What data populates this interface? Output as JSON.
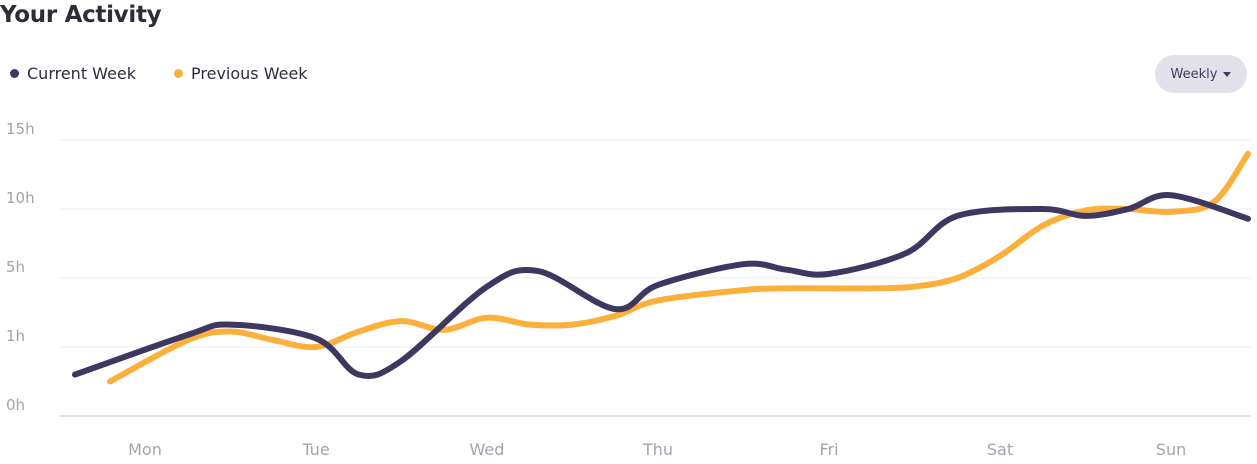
{
  "header": {
    "title": "Your Activity"
  },
  "dropdown": {
    "label": "Weekly",
    "icon": "caret-down-icon"
  },
  "colors": {
    "current": "#3e3760",
    "previous": "#fbb03b",
    "grid": "#eeeef1",
    "axis": "#d5d4db"
  },
  "chart_data": {
    "type": "line",
    "title": "Your Activity",
    "xlabel": "",
    "ylabel": "",
    "y_ticks": [
      "0h",
      "1h",
      "5h",
      "10h",
      "15h"
    ],
    "categories": [
      "Mon",
      "Tue",
      "Wed",
      "Thu",
      "Fri",
      "Sat",
      "Sun"
    ],
    "legend_position": "top-left",
    "grid": true,
    "series": [
      {
        "name": "Current Week",
        "x": [
          0,
          0.25,
          0.5,
          1.0,
          1.25,
          1.5,
          2.0,
          2.3,
          2.75,
          3.0,
          3.5,
          3.75,
          4.0,
          4.45,
          4.75,
          5.25,
          5.5,
          5.75,
          6.0,
          6.45
        ],
        "y": [
          0.6,
          1.7,
          2.3,
          1.5,
          0.6,
          0.8,
          4.5,
          5.5,
          3.2,
          4.6,
          6.0,
          5.6,
          5.3,
          6.8,
          9.5,
          10.0,
          9.5,
          10.0,
          11.0,
          9.3
        ]
      },
      {
        "name": "Previous Week",
        "x": [
          0,
          0.25,
          0.5,
          0.75,
          1.0,
          1.25,
          1.5,
          1.75,
          2.0,
          2.25,
          2.5,
          2.75,
          3.0,
          3.5,
          3.75,
          4.0,
          4.25,
          4.5,
          4.75,
          5.0,
          5.25,
          5.5,
          5.75,
          6.0,
          6.25,
          6.45
        ],
        "y": [
          0.5,
          1.4,
          1.9,
          1.4,
          1.0,
          1.9,
          2.5,
          2.0,
          2.7,
          2.3,
          2.3,
          2.8,
          3.7,
          4.3,
          4.4,
          4.4,
          4.4,
          4.5,
          5.0,
          6.6,
          8.8,
          9.9,
          10.0,
          9.8,
          10.5,
          14.0
        ]
      }
    ]
  }
}
